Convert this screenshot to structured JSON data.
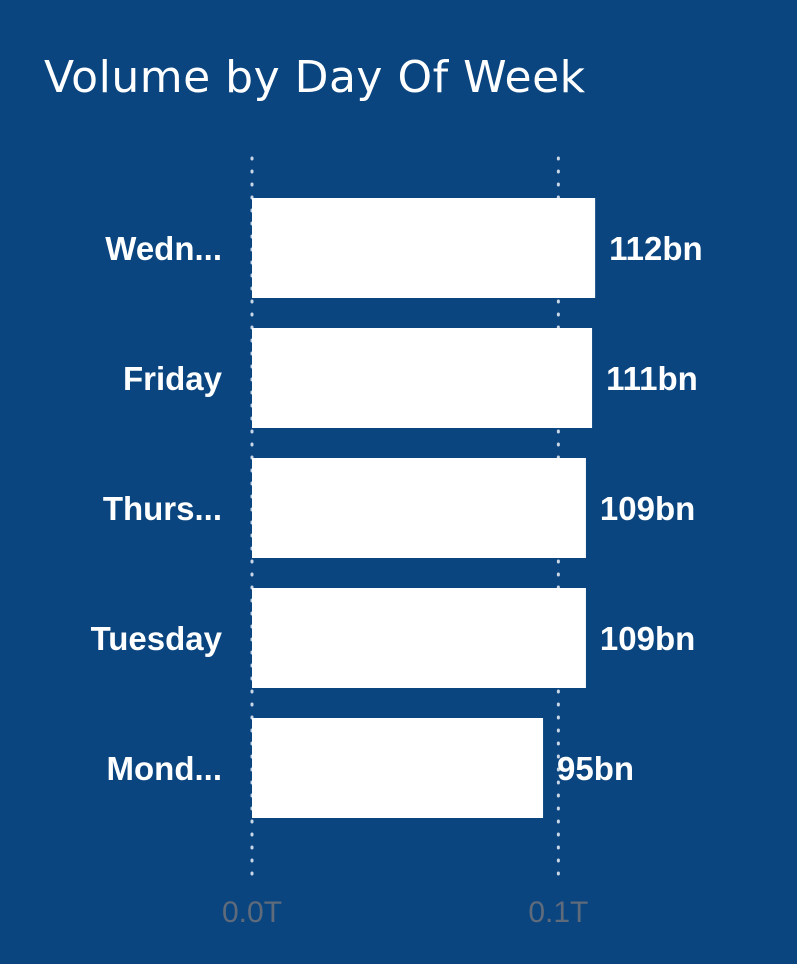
{
  "chart_data": {
    "type": "bar",
    "orientation": "horizontal",
    "title": "Volume by Day Of Week",
    "categories": [
      "Wedn...",
      "Friday",
      "Thurs...",
      "Tuesday",
      "Mond..."
    ],
    "values": [
      112,
      111,
      109,
      109,
      95
    ],
    "value_unit": "bn",
    "data_labels": [
      "112bn",
      "111bn",
      "109bn",
      "109bn",
      "95bn"
    ],
    "xlim": [
      0,
      0.11
    ],
    "x_axis_scale": "trillions",
    "x_ticks": [
      0,
      0.1
    ],
    "x_tick_labels": [
      "0.0T",
      "0.1T"
    ],
    "grid": true,
    "xlabel": "",
    "ylabel": "",
    "colors": {
      "background": "#0a4580",
      "bar": "#ffffff",
      "text": "#ffffff",
      "tick_text": "#5f6b7a",
      "grid": "#c9d6e6"
    }
  }
}
